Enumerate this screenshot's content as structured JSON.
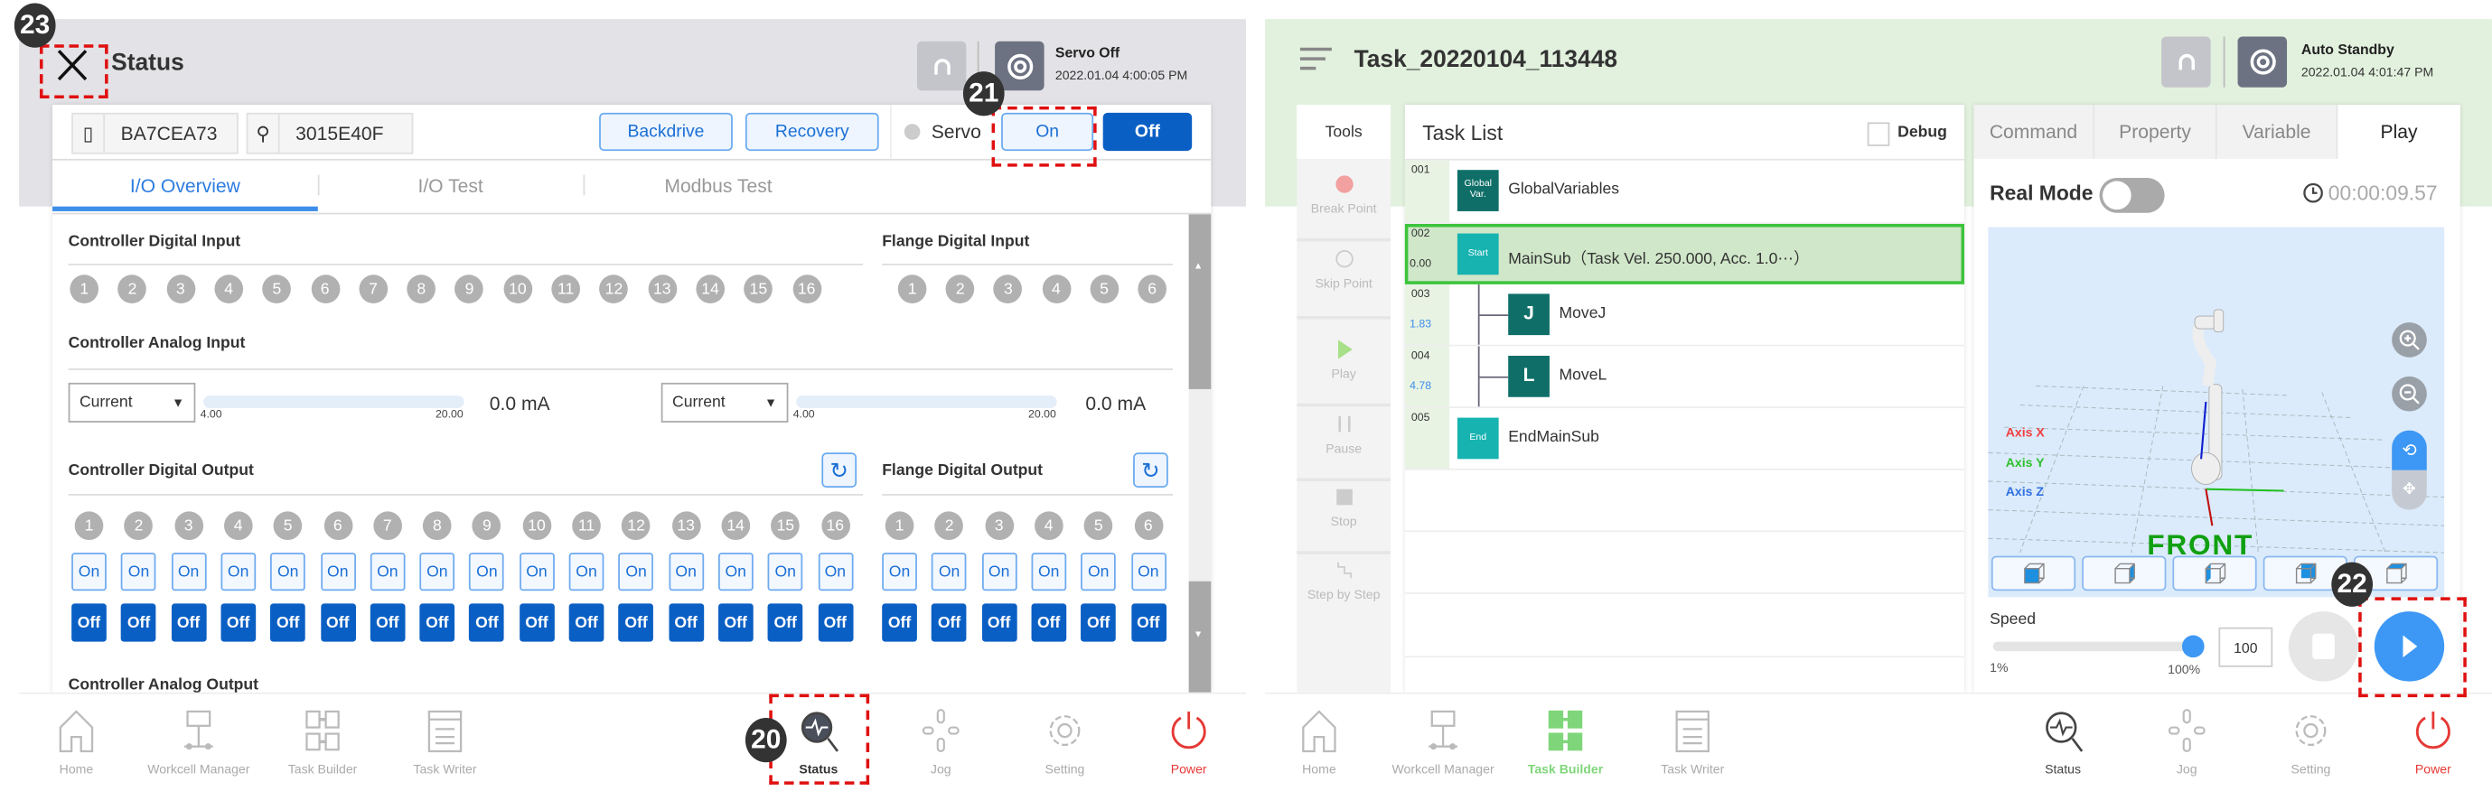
{
  "left": {
    "header": {
      "title": "Status",
      "servo_status": "Servo Off",
      "datetime": "2022.01.04 4:00:05 PM"
    },
    "ids": [
      "BA7CEA73",
      "3015E40F"
    ],
    "buttons": {
      "backdrive": "Backdrive",
      "recovery": "Recovery",
      "servo_label": "Servo",
      "on": "On",
      "off": "Off"
    },
    "tabs": [
      {
        "label": "I/O Overview",
        "active": true
      },
      {
        "label": "I/O Test"
      },
      {
        "label": "Modbus Test"
      }
    ],
    "sections": {
      "controller_digital_input": "Controller Digital Input",
      "flange_digital_input": "Flange Digital Input",
      "controller_analog_input": "Controller Analog Input",
      "controller_digital_output": "Controller Digital Output",
      "flange_digital_output": "Flange Digital Output",
      "controller_analog_output": "Controller Analog Output"
    },
    "controller_channels": [
      "1",
      "2",
      "3",
      "4",
      "5",
      "6",
      "7",
      "8",
      "9",
      "10",
      "11",
      "12",
      "13",
      "14",
      "15",
      "16"
    ],
    "flange_channels": [
      "1",
      "2",
      "3",
      "4",
      "5",
      "6"
    ],
    "on_label": "On",
    "off_label": "Off",
    "analog_inputs": [
      {
        "mode": "Current",
        "min": "4.00",
        "max": "20.00",
        "value": "0.0 mA"
      },
      {
        "mode": "Current",
        "min": "4.00",
        "max": "20.00",
        "value": "0.0 mA"
      }
    ],
    "nav": [
      "Home",
      "Workcell Manager",
      "Task Builder",
      "Task Writer",
      "Status",
      "Jog",
      "Setting",
      "Power"
    ],
    "nav_active": "Status"
  },
  "right": {
    "header": {
      "title": "Task_20220104_113448",
      "status": "Auto Standby",
      "datetime": "2022.01.04 4:01:47 PM"
    },
    "tools": {
      "title": "Tools",
      "items": [
        "Break Point",
        "Skip Point",
        "Play",
        "Pause",
        "Stop",
        "Step by Step"
      ]
    },
    "task_list": {
      "title": "Task List",
      "debug_label": "Debug",
      "debug_checked": false,
      "rows": [
        {
          "num": "001",
          "time": "",
          "block": "Global Var.",
          "label": "GlobalVariables",
          "color": "#0f6f68"
        },
        {
          "num": "002",
          "time": "0.00",
          "block": "Start",
          "label": "MainSub（Task Vel. 250.000, Acc. 1.0⋯）",
          "color": "#17b3b0",
          "selected": true
        },
        {
          "num": "003",
          "time": "1.83",
          "block": "J",
          "label": "MoveJ",
          "color": "#0f6f68"
        },
        {
          "num": "004",
          "time": "4.78",
          "block": "L",
          "label": "MoveL",
          "color": "#0f6f68"
        },
        {
          "num": "005",
          "time": "",
          "block": "End",
          "label": "EndMainSub",
          "color": "#17b3b0"
        }
      ]
    },
    "tabs": [
      "Command",
      "Property",
      "Variable",
      "Play"
    ],
    "active_tab": "Play",
    "play": {
      "real_mode_label": "Real Mode",
      "real_mode_on": false,
      "elapsed": "00:00:09.57",
      "axis_labels": [
        "Axis X",
        "Axis Y",
        "Axis Z"
      ],
      "front_label": "FRONT",
      "speed_label": "Speed",
      "speed_min": "1%",
      "speed_max": "100%",
      "speed_value": "100",
      "speed_percent": 100
    },
    "nav": [
      "Home",
      "Workcell Manager",
      "Task Builder",
      "Task Writer",
      "Status",
      "Jog",
      "Setting",
      "Power"
    ],
    "nav_active": "Task Builder"
  },
  "annotations": [
    "20",
    "21",
    "22",
    "23"
  ],
  "colors": {
    "primary": "#0a5fc4",
    "accent_blue": "#3d98f5",
    "power_red": "#e53935",
    "task_builder_green": "#7fd67a",
    "annotation_red": "#e01010"
  }
}
